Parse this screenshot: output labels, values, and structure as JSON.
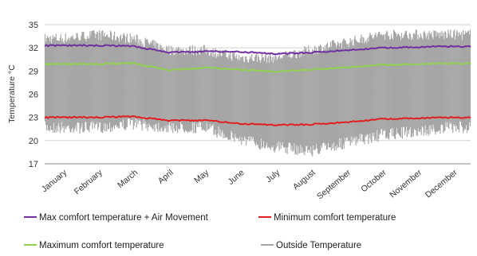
{
  "chart_data": {
    "type": "line",
    "ylabel": "Temperature °C",
    "xlabel": "",
    "ylim": [
      17,
      35
    ],
    "yticks": [
      17,
      20,
      23,
      26,
      29,
      32,
      35
    ],
    "categories": [
      "January",
      "February",
      "March",
      "April",
      "May",
      "June",
      "July",
      "August",
      "September",
      "October",
      "November",
      "December"
    ],
    "grid": "horizontal",
    "legend_position": "bottom",
    "colors": {
      "max_air": "#7030a0",
      "minimum": "#e02020",
      "maximum": "#92d050",
      "outside": "#a6a6a6"
    },
    "series": [
      {
        "name": "Max comfort temperature + Air Movement",
        "key": "max_air",
        "values": [
          32.3,
          32.3,
          32.2,
          31.4,
          31.5,
          31.5,
          31.2,
          31.4,
          31.7,
          32.0,
          32.1,
          32.2
        ]
      },
      {
        "name": "Minimum comfort temperature",
        "key": "minimum",
        "values": [
          23.0,
          23.0,
          23.1,
          22.6,
          22.6,
          22.2,
          22.0,
          22.1,
          22.4,
          22.8,
          22.9,
          23.0
        ]
      },
      {
        "name": "Maximum comfort temperature",
        "key": "maximum",
        "values": [
          29.9,
          29.9,
          30.0,
          29.1,
          29.4,
          29.2,
          28.9,
          29.2,
          29.5,
          29.8,
          29.9,
          30.0
        ]
      },
      {
        "name": "Outside Temperature",
        "key": "outside",
        "band_low": [
          22.5,
          22.5,
          23.0,
          22.5,
          22.5,
          21.0,
          20.0,
          19.5,
          20.5,
          21.5,
          22.0,
          22.5
        ],
        "band_high": [
          32.5,
          33.0,
          32.5,
          31.0,
          31.0,
          30.0,
          30.0,
          31.0,
          32.0,
          33.0,
          33.0,
          33.0
        ]
      }
    ]
  },
  "legend": [
    {
      "label": "Max comfort temperature + Air Movement",
      "key": "max_air"
    },
    {
      "label": "Minimum comfort temperature",
      "key": "minimum"
    },
    {
      "label": "Maximum comfort temperature",
      "key": "maximum"
    },
    {
      "label": "Outside Temperature",
      "key": "outside"
    }
  ]
}
